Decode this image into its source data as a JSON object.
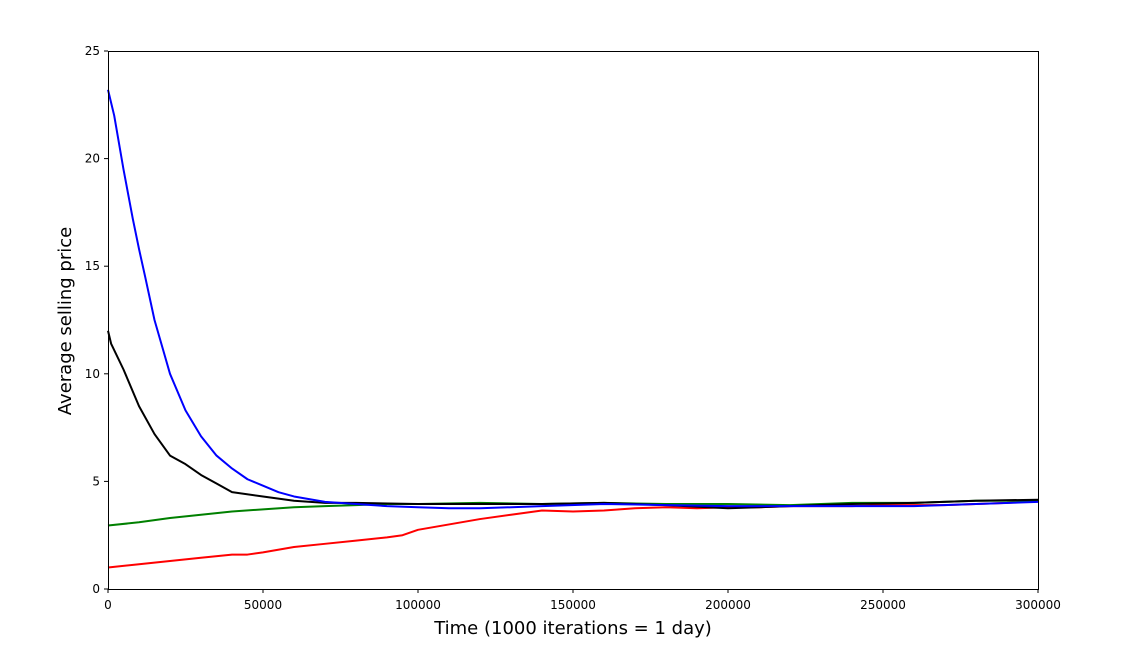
{
  "chart_data": {
    "type": "line",
    "title": "",
    "xlabel": "Time (1000 iterations = 1 day)",
    "ylabel": "Average selling price",
    "xlim": [
      0,
      300000
    ],
    "ylim": [
      0,
      25
    ],
    "x_ticks": [
      0,
      50000,
      100000,
      150000,
      200000,
      250000,
      300000
    ],
    "x_tick_labels": [
      "0",
      "50000",
      "100000",
      "150000",
      "200000",
      "250000",
      "300000"
    ],
    "y_ticks": [
      0,
      5,
      10,
      15,
      20,
      25
    ],
    "y_tick_labels": [
      "0",
      "5",
      "10",
      "15",
      "20",
      "25"
    ],
    "grid": false,
    "legend": "none",
    "series": [
      {
        "color": "#ff0000",
        "x": [
          0,
          10000,
          20000,
          30000,
          40000,
          45000,
          50000,
          60000,
          70000,
          80000,
          90000,
          95000,
          100000,
          110000,
          120000,
          130000,
          140000,
          150000,
          160000,
          170000,
          180000,
          190000,
          200000,
          210000,
          220000,
          230000,
          240000,
          250000,
          260000,
          270000,
          280000,
          290000,
          300000
        ],
        "y": [
          1.0,
          1.15,
          1.3,
          1.45,
          1.6,
          1.6,
          1.7,
          1.95,
          2.1,
          2.25,
          2.4,
          2.5,
          2.75,
          3.0,
          3.25,
          3.45,
          3.65,
          3.6,
          3.65,
          3.75,
          3.8,
          3.75,
          3.8,
          3.8,
          3.85,
          3.85,
          3.85,
          3.9,
          3.9,
          3.9,
          3.95,
          4.0,
          4.1
        ]
      },
      {
        "color": "#008000",
        "x": [
          0,
          10000,
          20000,
          30000,
          40000,
          50000,
          60000,
          70000,
          80000,
          90000,
          100000,
          120000,
          140000,
          160000,
          180000,
          200000,
          220000,
          240000,
          260000,
          280000,
          300000
        ],
        "y": [
          2.95,
          3.1,
          3.3,
          3.45,
          3.6,
          3.7,
          3.8,
          3.85,
          3.9,
          3.95,
          3.95,
          4.0,
          3.95,
          4.0,
          3.95,
          3.95,
          3.9,
          4.0,
          4.0,
          4.1,
          4.1
        ]
      },
      {
        "color": "#000000",
        "x": [
          0,
          1000,
          5000,
          10000,
          15000,
          20000,
          25000,
          30000,
          35000,
          40000,
          50000,
          60000,
          70000,
          80000,
          100000,
          120000,
          140000,
          160000,
          180000,
          200000,
          220000,
          240000,
          260000,
          280000,
          300000
        ],
        "y": [
          12.0,
          11.4,
          10.2,
          8.5,
          7.2,
          6.2,
          5.8,
          5.3,
          4.9,
          4.5,
          4.3,
          4.1,
          4.0,
          4.0,
          3.95,
          3.95,
          3.95,
          4.0,
          3.9,
          3.75,
          3.85,
          3.95,
          4.0,
          4.1,
          4.15
        ]
      },
      {
        "color": "#0000ff",
        "x": [
          0,
          2000,
          5000,
          8000,
          10000,
          12000,
          15000,
          18000,
          20000,
          25000,
          30000,
          35000,
          40000,
          45000,
          50000,
          55000,
          60000,
          70000,
          80000,
          90000,
          100000,
          110000,
          120000,
          140000,
          160000,
          180000,
          200000,
          220000,
          240000,
          260000,
          280000,
          300000
        ],
        "y": [
          23.2,
          22.0,
          19.5,
          17.2,
          15.8,
          14.5,
          12.5,
          11.0,
          10.0,
          8.3,
          7.1,
          6.2,
          5.6,
          5.1,
          4.8,
          4.5,
          4.3,
          4.05,
          3.95,
          3.85,
          3.8,
          3.75,
          3.75,
          3.85,
          3.95,
          3.9,
          3.85,
          3.85,
          3.85,
          3.85,
          3.95,
          4.05
        ]
      }
    ]
  }
}
